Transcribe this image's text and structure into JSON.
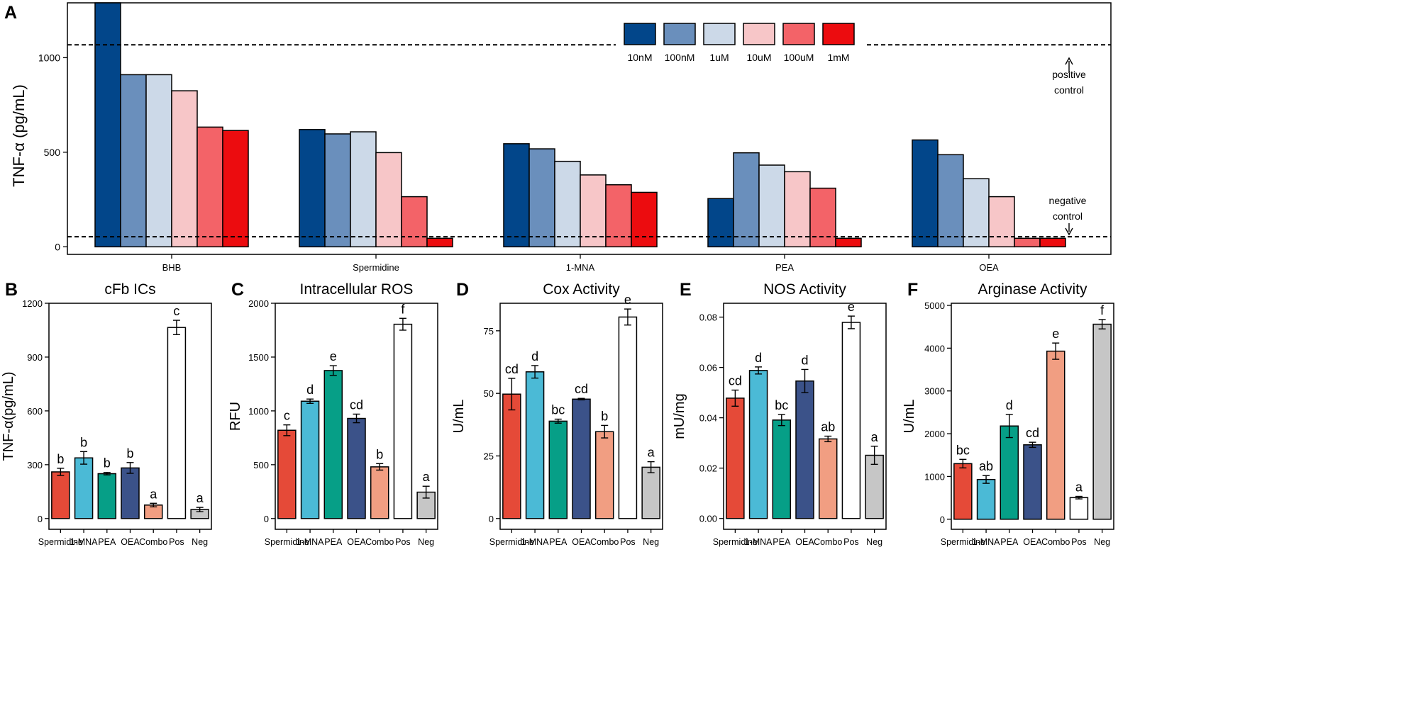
{
  "colors": {
    "conc": [
      "#02468a",
      "#6a8fbc",
      "#ccd9e8",
      "#f7c6c8",
      "#f36368",
      "#ec0c0f"
    ],
    "cmp": [
      "#e54a38",
      "#4bbad6",
      "#069f87",
      "#3b5289",
      "#f19e82",
      "#ffffff",
      "#c6c6c6"
    ]
  },
  "chart_data": [
    {
      "panel": "A",
      "type": "bar",
      "title": "",
      "ylabel": "TNF-α (pg/mL)",
      "xlabel": "",
      "ylim": [
        -40,
        1290
      ],
      "yticks": [
        0,
        500,
        1000
      ],
      "categories": [
        "BHB",
        "Spermidine",
        "1-MNA",
        "PEA",
        "OEA"
      ],
      "series": [
        {
          "name": "10nM",
          "values": [
            1290,
            620,
            545,
            255,
            565
          ]
        },
        {
          "name": "100nM",
          "values": [
            910,
            597,
            518,
            497,
            487
          ]
        },
        {
          "name": "1uM",
          "values": [
            910,
            608,
            452,
            432,
            360
          ]
        },
        {
          "name": "10uM",
          "values": [
            825,
            498,
            380,
            397,
            265
          ]
        },
        {
          "name": "100uM",
          "values": [
            633,
            265,
            328,
            310,
            45
          ]
        },
        {
          "name": "1mM",
          "values": [
            615,
            45,
            288,
            45,
            45
          ]
        }
      ],
      "reference_lines": [
        {
          "value": 1068,
          "label_lines": [
            "positive",
            "control"
          ]
        },
        {
          "value": 53,
          "label_lines": [
            "negative",
            "control"
          ]
        }
      ],
      "legend": "top-right"
    },
    {
      "panel": "B",
      "type": "bar",
      "title": "cFb ICs",
      "ylabel": "TNF-α(pg/mL)",
      "ylim": [
        -60,
        1200
      ],
      "yticks": [
        0,
        300,
        600,
        900,
        1200
      ],
      "categories": [
        "Spermidine",
        "1-MNA",
        "PEA",
        "OEA",
        "Combo",
        "Pos",
        "Neg"
      ],
      "values": [
        260,
        338,
        250,
        282,
        75,
        1065,
        50
      ],
      "errors": [
        20,
        35,
        7,
        30,
        10,
        40,
        12
      ],
      "letters": [
        "b",
        "b",
        "b",
        "b",
        "a",
        "c",
        "a"
      ]
    },
    {
      "panel": "C",
      "type": "bar",
      "title": "Intracellular ROS",
      "ylabel": "RFU",
      "ylim": [
        -100,
        2000
      ],
      "yticks": [
        0,
        500,
        1000,
        1500,
        2000
      ],
      "categories": [
        "Spermidine",
        "1-MNA",
        "PEA",
        "OEA",
        "Combo",
        "Pos",
        "Neg"
      ],
      "values": [
        820,
        1090,
        1375,
        930,
        480,
        1805,
        245
      ],
      "errors": [
        50,
        20,
        45,
        40,
        30,
        55,
        55
      ],
      "letters": [
        "c",
        "d",
        "e",
        "cd",
        "b",
        "f",
        "a"
      ]
    },
    {
      "panel": "D",
      "type": "bar",
      "title": "Cox Activity",
      "ylabel": "U/mL",
      "ylim": [
        -4.3,
        86
      ],
      "yticks": [
        0,
        25,
        50,
        75
      ],
      "categories": [
        "Spermidine",
        "1-MNA",
        "PEA",
        "OEA",
        "Combo",
        "Pos",
        "Neg"
      ],
      "values": [
        49.7,
        58.6,
        38.9,
        47.7,
        34.7,
        80.5,
        20.5
      ],
      "errors": [
        6.3,
        2.5,
        0.8,
        0.3,
        2.5,
        3.2,
        2.2
      ],
      "letters": [
        "cd",
        "d",
        "bc",
        "cd",
        "b",
        "e",
        "a"
      ]
    },
    {
      "panel": "E",
      "type": "bar",
      "title": "NOS Activity",
      "ylabel": "mU/mg",
      "ylim": [
        -0.0043,
        0.0855
      ],
      "yticks": [
        0.0,
        0.02,
        0.04,
        0.06,
        0.08
      ],
      "categories": [
        "Spermidine",
        "1-MNA",
        "PEA",
        "OEA",
        "Combo",
        "Pos",
        "Neg"
      ],
      "values": [
        0.0478,
        0.0588,
        0.0391,
        0.0546,
        0.0316,
        0.0779,
        0.0251
      ],
      "errors": [
        0.0032,
        0.0014,
        0.0022,
        0.0046,
        0.0011,
        0.0025,
        0.0036
      ],
      "letters": [
        "cd",
        "d",
        "bc",
        "d",
        "ab",
        "e",
        "a"
      ]
    },
    {
      "panel": "F",
      "type": "bar",
      "title": "Arginase Activity",
      "ylabel": "U/mL",
      "ylim": [
        -235,
        5050
      ],
      "yticks": [
        0,
        1000,
        2000,
        3000,
        4000,
        5000
      ],
      "categories": [
        "Spermidine",
        "1-MNA",
        "PEA",
        "OEA",
        "Combo",
        "Pos",
        "Neg"
      ],
      "values": [
        1300,
        930,
        2180,
        1740,
        3930,
        505,
        4560
      ],
      "errors": [
        100,
        90,
        270,
        60,
        190,
        30,
        110
      ],
      "letters": [
        "bc",
        "ab",
        "d",
        "cd",
        "e",
        "a",
        "f"
      ]
    }
  ]
}
